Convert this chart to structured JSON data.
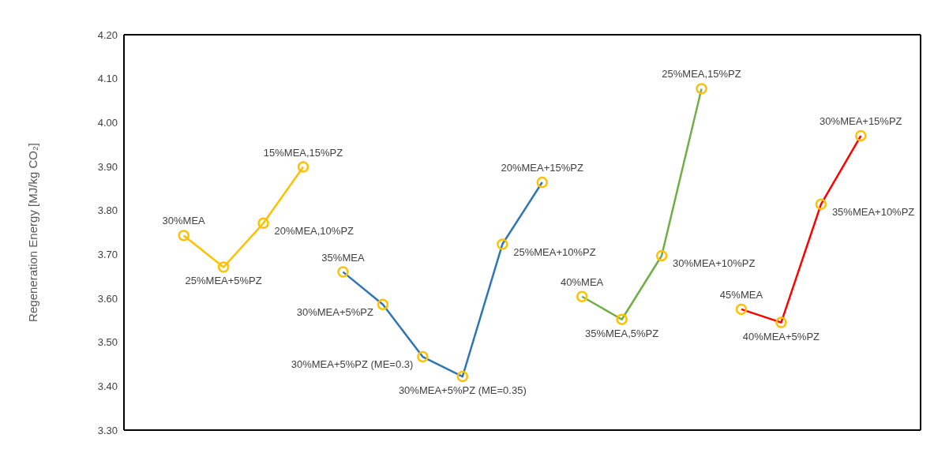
{
  "chart_data": {
    "type": "line",
    "ylabel": "Regeneration Energy [MJ/kg CO₂]",
    "categories": [
      null,
      null,
      null,
      null,
      null,
      null,
      null,
      null,
      null,
      null,
      null,
      null,
      null,
      null,
      null,
      null,
      null,
      null,
      null,
      null
    ],
    "ylim": [
      3.3,
      4.2
    ],
    "yticks": [
      {
        "value": 3.3,
        "label": "3.30"
      },
      {
        "value": 3.4,
        "label": "3.40"
      },
      {
        "value": 3.5,
        "label": "3.50"
      },
      {
        "value": 3.6,
        "label": "3.60"
      },
      {
        "value": 3.7,
        "label": "3.70"
      },
      {
        "value": 3.8,
        "label": "3.80"
      },
      {
        "value": 3.9,
        "label": "3.90"
      },
      {
        "value": 4.0,
        "label": "4.00"
      },
      {
        "value": 4.1,
        "label": "4.10"
      },
      {
        "value": 4.2,
        "label": "4.20"
      }
    ],
    "tick_labels": "y",
    "grid": false,
    "legend": false,
    "marker": "circle",
    "line_style": "solid",
    "annotations": [
      "30%MEA",
      "25%MEA+5%PZ",
      "20%MEA,10%PZ",
      "15%MEA,15%PZ",
      "35%MEA",
      "30%MEA+5%PZ",
      "30%MEA+5%PZ (ME=0.3)",
      "30%MEA+5%PZ (ME=0.35)",
      "25%MEA+10%PZ",
      "20%MEA+15%PZ",
      "40%MEA",
      "35%MEA,5%PZ",
      "30%MEA+10%PZ",
      "25%MEA,15%PZ",
      "45%MEA",
      "40%MEA+5%PZ",
      "35%MEA+10%PZ",
      "30%MEA+15%PZ"
    ],
    "series": [
      {
        "color": "#ffc000",
        "colors": [
          null,
          "#ffc000",
          "#ffc000",
          "#ffc000",
          "#ffc000",
          null,
          null,
          null,
          null,
          null,
          null,
          null,
          null,
          null,
          null,
          null,
          null,
          null,
          null,
          null
        ],
        "values": [
          null,
          3.743,
          3.671,
          3.771,
          3.899,
          null,
          null,
          null,
          null,
          null,
          null,
          null,
          null,
          null,
          null,
          null,
          null,
          null,
          null,
          null
        ]
      },
      {
        "color": "#2e75b6",
        "colors": [
          null,
          null,
          null,
          null,
          null,
          "#ffc000",
          "#ffc000",
          "#ffc000",
          "#ffc000",
          "#ffc000",
          "#ffc000",
          null,
          null,
          null,
          null,
          null,
          null,
          null,
          null,
          null
        ],
        "values": [
          null,
          null,
          null,
          null,
          null,
          3.66,
          3.586,
          3.467,
          3.422,
          3.723,
          3.864,
          null,
          null,
          null,
          null,
          null,
          null,
          null,
          null,
          null
        ]
      },
      {
        "color": "#70ad47",
        "colors": [
          null,
          null,
          null,
          null,
          null,
          null,
          null,
          null,
          null,
          null,
          null,
          "#ffc000",
          "#ffc000",
          "#ffc000",
          "#ffc000",
          null,
          null,
          null,
          null,
          null
        ],
        "values": [
          null,
          null,
          null,
          null,
          null,
          null,
          null,
          null,
          null,
          null,
          null,
          3.604,
          3.552,
          3.697,
          4.077,
          null,
          null,
          null,
          null,
          null
        ]
      },
      {
        "color": "#ff0000",
        "colors": [
          null,
          null,
          null,
          null,
          null,
          null,
          null,
          null,
          null,
          null,
          null,
          null,
          null,
          null,
          null,
          "#ffc000",
          "#ffc000",
          "#ffc000",
          "#ffc000",
          null
        ],
        "values": [
          null,
          null,
          null,
          null,
          null,
          null,
          null,
          null,
          null,
          null,
          null,
          null,
          null,
          null,
          null,
          3.575,
          3.545,
          3.814,
          3.97,
          null
        ]
      }
    ]
  }
}
